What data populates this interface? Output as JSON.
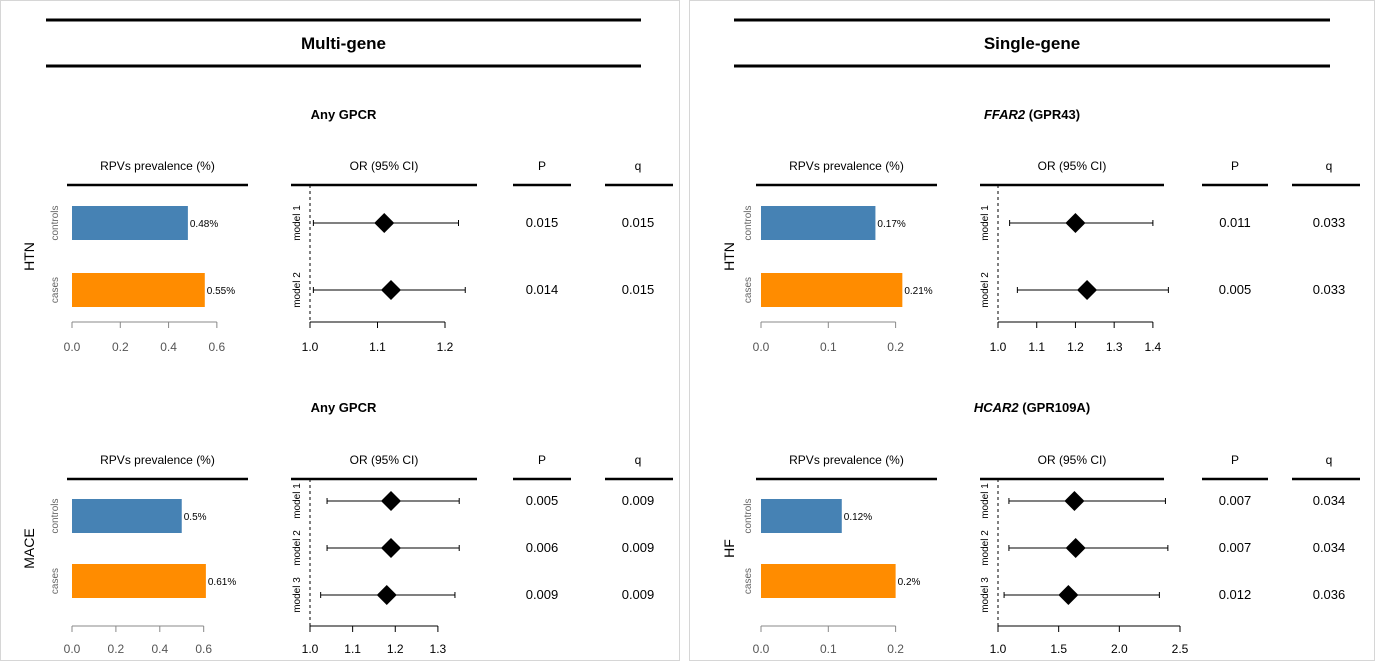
{
  "figure": {
    "panels": [
      {
        "title": "Multi-gene",
        "column_headers": {
          "prevalence": "RPVs prevalence (%)",
          "or": "OR (95% CI)",
          "p": "P",
          "q": "q"
        },
        "blocks": [
          {
            "title_italic": "",
            "title_rest": "Any GPCR",
            "outcome": "HTN"
          },
          {
            "title_italic": "",
            "title_rest": "Any GPCR",
            "outcome": "MACE"
          }
        ]
      },
      {
        "title": "Single-gene",
        "column_headers": {
          "prevalence": "RPVs prevalence (%)",
          "or": "OR (95% CI)",
          "p": "P",
          "q": "q"
        },
        "blocks": [
          {
            "title_italic": "FFAR2",
            "title_rest": " (GPR43)",
            "outcome": "HTN"
          },
          {
            "title_italic": "HCAR2",
            "title_rest": " (GPR109A)",
            "outcome": "HF"
          }
        ]
      }
    ]
  },
  "chart_data": [
    {
      "type": "bar",
      "panel": "Multi-gene",
      "block": "Any GPCR",
      "outcome": "HTN",
      "title": "RPVs prevalence (%)",
      "categories": [
        "controls",
        "cases"
      ],
      "values": [
        0.48,
        0.55
      ],
      "labels": [
        "0.48%",
        "0.55%"
      ],
      "colors": [
        "#4682b4",
        "#ff8c00"
      ],
      "xlim": [
        0,
        0.7
      ],
      "xticks": [
        "0.0",
        "0.2",
        "0.4",
        "0.6"
      ],
      "xtick_values": [
        0,
        0.2,
        0.4,
        0.6
      ]
    },
    {
      "type": "scatter",
      "panel": "Multi-gene",
      "block": "Any GPCR",
      "outcome": "HTN",
      "title": "OR (95% CI)",
      "models": [
        "model 1",
        "model 2"
      ],
      "or": [
        1.11,
        1.12
      ],
      "ci_low": [
        1.005,
        1.005
      ],
      "ci_high": [
        1.22,
        1.23
      ],
      "p": [
        "0.015",
        "0.014"
      ],
      "q": [
        "0.015",
        "0.015"
      ],
      "xlim": [
        1.0,
        1.24
      ],
      "xticks": [
        "1.0",
        "1.1",
        "1.2"
      ],
      "xtick_values": [
        1.0,
        1.1,
        1.2
      ],
      "ref_line": 1.0
    },
    {
      "type": "bar",
      "panel": "Multi-gene",
      "block": "Any GPCR",
      "outcome": "MACE",
      "title": "RPVs prevalence (%)",
      "categories": [
        "controls",
        "cases"
      ],
      "values": [
        0.5,
        0.61
      ],
      "labels": [
        "0.5%",
        "0.61%"
      ],
      "colors": [
        "#4682b4",
        "#ff8c00"
      ],
      "xlim": [
        0,
        0.77
      ],
      "xticks": [
        "0.0",
        "0.2",
        "0.4",
        "0.6"
      ],
      "xtick_values": [
        0,
        0.2,
        0.4,
        0.6
      ]
    },
    {
      "type": "scatter",
      "panel": "Multi-gene",
      "block": "Any GPCR",
      "outcome": "MACE",
      "title": "OR (95% CI)",
      "models": [
        "model 1",
        "model 2",
        "model 3"
      ],
      "or": [
        1.19,
        1.19,
        1.18
      ],
      "ci_low": [
        1.04,
        1.04,
        1.025
      ],
      "ci_high": [
        1.35,
        1.35,
        1.34
      ],
      "p": [
        "0.005",
        "0.006",
        "0.009"
      ],
      "q": [
        "0.009",
        "0.009",
        "0.009"
      ],
      "xlim": [
        1.0,
        1.38
      ],
      "xticks": [
        "1.0",
        "1.1",
        "1.2",
        "1.3"
      ],
      "xtick_values": [
        1.0,
        1.1,
        1.2,
        1.3
      ],
      "ref_line": 1.0
    },
    {
      "type": "bar",
      "panel": "Single-gene",
      "block": "FFAR2 (GPR43)",
      "outcome": "HTN",
      "title": "RPVs prevalence (%)",
      "categories": [
        "controls",
        "cases"
      ],
      "values": [
        0.17,
        0.21
      ],
      "labels": [
        "0.17%",
        "0.21%"
      ],
      "colors": [
        "#4682b4",
        "#ff8c00"
      ],
      "xlim": [
        0,
        0.26
      ],
      "xticks": [
        "0.0",
        "0.1",
        "0.2"
      ],
      "xtick_values": [
        0,
        0.1,
        0.2
      ]
    },
    {
      "type": "scatter",
      "panel": "Single-gene",
      "block": "FFAR2 (GPR43)",
      "outcome": "HTN",
      "title": "OR (95% CI)",
      "models": [
        "model 1",
        "model 2"
      ],
      "or": [
        1.2,
        1.23
      ],
      "ci_low": [
        1.03,
        1.05
      ],
      "ci_high": [
        1.4,
        1.44
      ],
      "p": [
        "0.011",
        "0.005"
      ],
      "q": [
        "0.033",
        "0.033"
      ],
      "xlim": [
        1.0,
        1.47
      ],
      "xticks": [
        "1.0",
        "1.1",
        "1.2",
        "1.3",
        "1.4"
      ],
      "xtick_values": [
        1.0,
        1.1,
        1.2,
        1.3,
        1.4
      ],
      "ref_line": 1.0
    },
    {
      "type": "bar",
      "panel": "Single-gene",
      "block": "HCAR2 (GPR109A)",
      "outcome": "HF",
      "title": "RPVs prevalence (%)",
      "categories": [
        "controls",
        "cases"
      ],
      "values": [
        0.12,
        0.2
      ],
      "labels": [
        "0.12%",
        "0.2%"
      ],
      "colors": [
        "#4682b4",
        "#ff8c00"
      ],
      "xlim": [
        0,
        0.26
      ],
      "xticks": [
        "0.0",
        "0.1",
        "0.2"
      ],
      "xtick_values": [
        0,
        0.1,
        0.2
      ]
    },
    {
      "type": "scatter",
      "panel": "Single-gene",
      "block": "HCAR2 (GPR109A)",
      "outcome": "HF",
      "title": "OR (95% CI)",
      "models": [
        "model 1",
        "model 2",
        "model 3"
      ],
      "or": [
        1.63,
        1.64,
        1.58
      ],
      "ci_low": [
        1.09,
        1.09,
        1.05
      ],
      "ci_high": [
        2.38,
        2.4,
        2.33
      ],
      "p": [
        "0.007",
        "0.007",
        "0.012"
      ],
      "q": [
        "0.034",
        "0.034",
        "0.036"
      ],
      "xlim": [
        1.0,
        2.5
      ],
      "xticks": [
        "1.0",
        "1.5",
        "2.0",
        "2.5"
      ],
      "xtick_values": [
        1.0,
        1.5,
        2.0,
        2.5
      ],
      "ref_line": 1.0
    }
  ]
}
